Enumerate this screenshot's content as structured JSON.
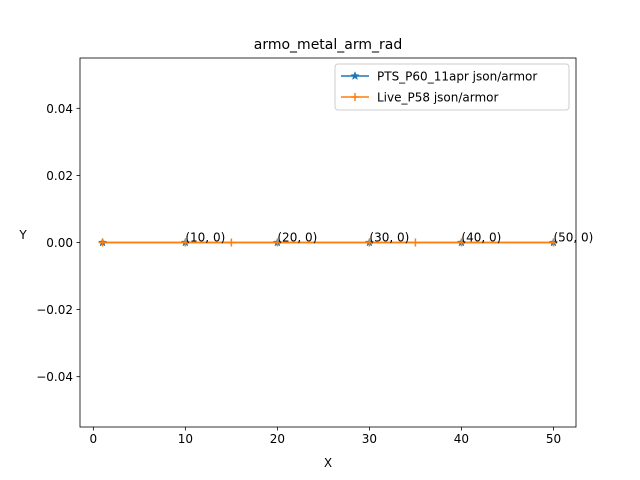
{
  "chart_data": {
    "type": "line",
    "title": "armo_metal_arm_rad",
    "xlabel": "X",
    "ylabel": "Y",
    "xlim": [
      -1.45,
      52.45
    ],
    "ylim": [
      -0.055,
      0.055
    ],
    "x_ticks": [
      0,
      10,
      20,
      30,
      40,
      50
    ],
    "x_tick_labels": [
      "0",
      "10",
      "20",
      "30",
      "40",
      "50"
    ],
    "y_ticks": [
      -0.04,
      -0.02,
      0.0,
      0.02,
      0.04
    ],
    "y_tick_labels": [
      "−0.04",
      "−0.02",
      "0.00",
      "0.02",
      "0.04"
    ],
    "grid": false,
    "legend_position": "upper right",
    "series": [
      {
        "name": "PTS_P60_11apr json/armor",
        "color": "#1f77b4",
        "marker": "star",
        "x": [
          1,
          10,
          20,
          30,
          40,
          50
        ],
        "y": [
          0,
          0,
          0,
          0,
          0,
          0
        ]
      },
      {
        "name": "Live_P58 json/armor",
        "color": "#ff7f0e",
        "marker": "plus",
        "x": [
          1,
          10,
          15,
          20,
          30,
          35,
          40,
          50
        ],
        "y": [
          0,
          0,
          0,
          0,
          0,
          0,
          0,
          0
        ]
      }
    ],
    "annotations": [
      {
        "text": "(10, 0)",
        "x": 10,
        "y": 0
      },
      {
        "text": "(20, 0)",
        "x": 20,
        "y": 0
      },
      {
        "text": "(30, 0)",
        "x": 30,
        "y": 0
      },
      {
        "text": "(40, 0)",
        "x": 40,
        "y": 0
      },
      {
        "text": "(50, 0)",
        "x": 50,
        "y": 0
      }
    ]
  }
}
